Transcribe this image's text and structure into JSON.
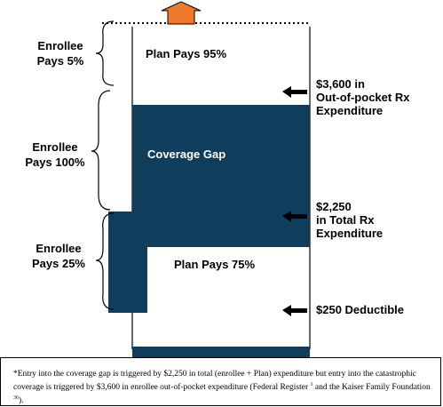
{
  "colors": {
    "fill": "#0f3d5c",
    "arrow_up": "#f07a2a",
    "text": "#000000",
    "inverse_text": "#ffffff"
  },
  "labels": {
    "enrollee_5": [
      "Enrollee",
      "Pays 5%"
    ],
    "enrollee_100": [
      "Enrollee",
      "Pays 100%"
    ],
    "enrollee_25": [
      "Enrollee",
      "Pays 25%"
    ],
    "plan_95": "Plan Pays 95%",
    "coverage_gap": "Coverage Gap",
    "plan_75": "Plan Pays 75%",
    "threshold_3600": [
      "$3,600 in",
      "Out-of-pocket Rx",
      "Expenditure"
    ],
    "threshold_2250": [
      "$2,250",
      "in Total Rx",
      "Expenditure"
    ],
    "deductible": "$250 Deductible"
  },
  "footnote": {
    "part1": "*Entry into the coverage gap is triggered by $2,250 in total (enrollee + Plan) expenditure but entry into the catastrophic coverage is triggered by $3,600 in enrollee out-of-pocket expenditure (Federal Register",
    "ref1": "1",
    "part2": " and the Kaiser Family Foundation",
    "ref2": "36",
    "part3": ")."
  }
}
